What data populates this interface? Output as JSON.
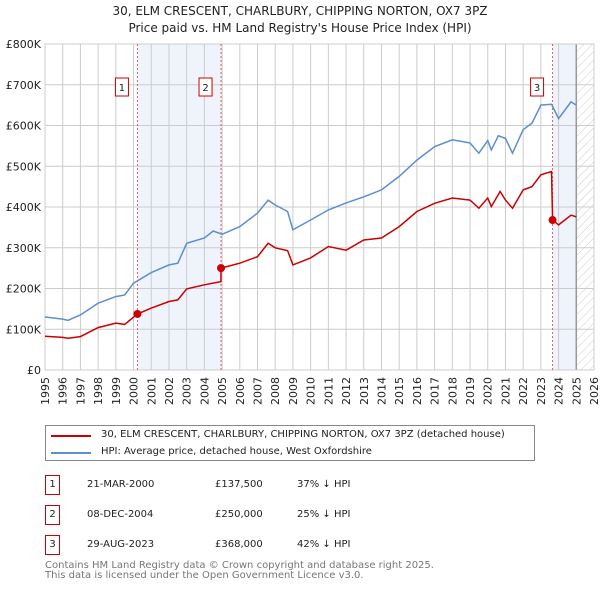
{
  "title": "30, ELM CRESCENT, CHARLBURY, CHIPPING NORTON, OX7 3PZ",
  "subtitle": "Price paid vs. HM Land Registry's House Price Index (HPI)",
  "chart_data": {
    "type": "line",
    "title": "30, ELM CRESCENT, CHARLBURY, CHIPPING NORTON, OX7 3PZ",
    "subtitle": "Price paid vs. HM Land Registry's House Price Index (HPI)",
    "xlim": [
      1995,
      2026
    ],
    "ylim": [
      0,
      800000
    ],
    "grid": true,
    "x_ticks": [
      "1995",
      "1996",
      "1997",
      "1998",
      "1999",
      "2000",
      "2001",
      "2002",
      "2003",
      "2004",
      "2005",
      "2006",
      "2007",
      "2008",
      "2009",
      "2010",
      "2011",
      "2012",
      "2013",
      "2014",
      "2015",
      "2016",
      "2017",
      "2018",
      "2019",
      "2020",
      "2021",
      "2022",
      "2023",
      "2024",
      "2025",
      "2026"
    ],
    "y_ticks": [
      {
        "v": 0,
        "label": "£0"
      },
      {
        "v": 100000,
        "label": "£100K"
      },
      {
        "v": 200000,
        "label": "£200K"
      },
      {
        "v": 300000,
        "label": "£300K"
      },
      {
        "v": 400000,
        "label": "£400K"
      },
      {
        "v": 500000,
        "label": "£500K"
      },
      {
        "v": 600000,
        "label": "£600K"
      },
      {
        "v": 700000,
        "label": "£700K"
      },
      {
        "v": 800000,
        "label": "£800K"
      }
    ],
    "forecast_from": 2025.0,
    "series": [
      {
        "name": "30, ELM CRESCENT, CHARLBURY, CHIPPING NORTON, OX7 3PZ (detached house)",
        "color": "#cc0000",
        "x": [
          1995,
          1996,
          1996.3,
          1997,
          1998,
          1999,
          1999.5,
          2000.22,
          2001,
          2002,
          2002.5,
          2003,
          2004,
          2004.93,
          2004.94,
          2006,
          2007,
          2007.6,
          2008,
          2008.7,
          2009,
          2010,
          2011,
          2012,
          2013,
          2014,
          2015,
          2016,
          2017,
          2018,
          2019,
          2019.5,
          2020,
          2020.2,
          2020.7,
          2021,
          2021.4,
          2022,
          2022.5,
          2023,
          2023.6,
          2023.66,
          2024,
          2024.7,
          2025
        ],
        "y": [
          83000,
          80000,
          78000,
          82000,
          104000,
          115000,
          112000,
          137500,
          152000,
          168000,
          172000,
          199000,
          209000,
          217000,
          250000,
          262000,
          278000,
          311000,
          300000,
          293000,
          258000,
          275000,
          303000,
          294000,
          319000,
          324000,
          352000,
          389000,
          409000,
          422000,
          417000,
          397000,
          422000,
          401000,
          438000,
          417000,
          397000,
          442000,
          450000,
          479000,
          487000,
          368000,
          356000,
          380000,
          376000
        ]
      },
      {
        "name": "HPI: Average price, detached house, West Oxfordshire",
        "color": "#5b8fd0",
        "x": [
          1995,
          1996,
          1996.3,
          1997,
          1998,
          1999,
          1999.5,
          2000,
          2001,
          2002,
          2002.5,
          2003,
          2004,
          2004.5,
          2005,
          2006,
          2007,
          2007.6,
          2008,
          2008.7,
          2009,
          2010,
          2011,
          2012,
          2013,
          2014,
          2015,
          2016,
          2017,
          2018,
          2019,
          2019.5,
          2020,
          2020.2,
          2020.6,
          2021,
          2021.4,
          2022,
          2022.5,
          2023,
          2023.6,
          2024,
          2024.7,
          2025
        ],
        "y": [
          130000,
          125000,
          122000,
          135000,
          164000,
          180000,
          184000,
          213000,
          239000,
          258000,
          262000,
          311000,
          324000,
          341000,
          333000,
          352000,
          385000,
          417000,
          405000,
          389000,
          344000,
          368000,
          393000,
          410000,
          425000,
          442000,
          475000,
          515000,
          548000,
          565000,
          557000,
          532000,
          563000,
          540000,
          575000,
          568000,
          532000,
          590000,
          606000,
          650000,
          652000,
          617000,
          658000,
          650000
        ]
      }
    ],
    "sales": [
      {
        "label": "1",
        "x": 2000.22,
        "price": 137500
      },
      {
        "label": "2",
        "x": 2004.94,
        "price": 250000
      },
      {
        "label": "3",
        "x": 2023.66,
        "price": 368000
      }
    ],
    "shaded_ranges": [
      [
        2000.22,
        2004.94
      ],
      [
        2023.66,
        2025.0
      ]
    ]
  },
  "legend": {
    "property": "30, ELM CRESCENT, CHARLBURY, CHIPPING NORTON, OX7 3PZ (detached house)",
    "hpi": "HPI: Average price, detached house, West Oxfordshire"
  },
  "transactions": [
    {
      "num": "1",
      "date": "21-MAR-2000",
      "price": "£137,500",
      "diff": "37% ↓ HPI"
    },
    {
      "num": "2",
      "date": "08-DEC-2004",
      "price": "£250,000",
      "diff": "25% ↓ HPI"
    },
    {
      "num": "3",
      "date": "29-AUG-2023",
      "price": "£368,000",
      "diff": "42% ↓ HPI"
    }
  ],
  "footer": {
    "line1": "Contains HM Land Registry data © Crown copyright and database right 2025.",
    "line2": "This data is licensed under the Open Government Licence v3.0."
  }
}
